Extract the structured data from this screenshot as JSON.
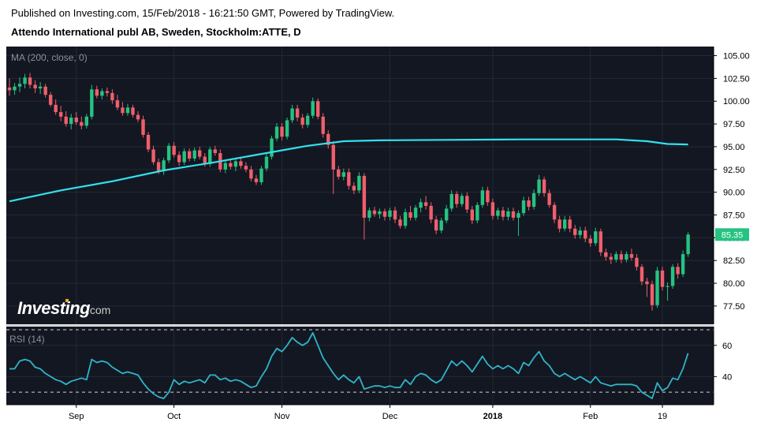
{
  "header": {
    "published": "Published on Investing.com, 15/Feb/2018 - 16:21:50 GMT, Powered by TradingView.",
    "title": "Attendo International publ AB, Sweden, Stockholm:ATTE, D"
  },
  "colors": {
    "background": "#131722",
    "up": "#26c281",
    "down": "#ef5f6b",
    "ma": "#33e0ee",
    "rsi": "#30b4c8",
    "grid": "#242833",
    "axis_text": "#000000",
    "last_price_bg": "#26c281"
  },
  "chart_data": [
    {
      "type": "candlestick",
      "title": "MA (200, close, 0)",
      "watermark": {
        "text": "Investing",
        "suffix": ".com"
      },
      "y_ticks": [
        77.5,
        80,
        82.5,
        85,
        87.5,
        90,
        92.5,
        95,
        97.5,
        100,
        102.5,
        105
      ],
      "y_tick_labels": [
        "77.50",
        "80.00",
        "82.50",
        "85.00",
        "87.50",
        "90.00",
        "92.50",
        "95.00",
        "97.50",
        "100.00",
        "102.50",
        "105.00"
      ],
      "ylim": [
        75.5,
        106
      ],
      "last_price": 85.35,
      "last_price_label": "85.35",
      "candles": [
        [
          101.5,
          102.5,
          100.6,
          101.2
        ],
        [
          101.2,
          102.0,
          100.7,
          101.6
        ],
        [
          101.6,
          102.6,
          101.0,
          101.9
        ],
        [
          101.9,
          103.0,
          101.4,
          102.6
        ],
        [
          102.6,
          103.1,
          101.4,
          101.8
        ],
        [
          101.8,
          102.3,
          100.9,
          101.4
        ],
        [
          101.4,
          102.1,
          100.8,
          101.6
        ],
        [
          101.6,
          101.9,
          100.4,
          100.7
        ],
        [
          100.7,
          101.0,
          99.4,
          99.6
        ],
        [
          99.6,
          100.2,
          98.5,
          98.8
        ],
        [
          98.8,
          99.5,
          97.8,
          98.3
        ],
        [
          98.3,
          98.9,
          97.2,
          97.5
        ],
        [
          97.5,
          98.6,
          96.9,
          98.2
        ],
        [
          98.2,
          98.8,
          97.4,
          97.7
        ],
        [
          97.7,
          98.3,
          96.9,
          97.3
        ],
        [
          97.3,
          98.6,
          97.0,
          98.3
        ],
        [
          98.3,
          101.8,
          98.0,
          101.3
        ],
        [
          101.3,
          101.7,
          100.3,
          100.6
        ],
        [
          100.6,
          101.4,
          100.2,
          101.1
        ],
        [
          101.1,
          101.5,
          100.5,
          100.9
        ],
        [
          100.9,
          101.3,
          99.7,
          100.1
        ],
        [
          100.1,
          100.7,
          99.0,
          99.3
        ],
        [
          99.3,
          99.9,
          98.4,
          98.7
        ],
        [
          98.7,
          99.7,
          98.4,
          99.3
        ],
        [
          99.3,
          99.6,
          98.2,
          98.5
        ],
        [
          98.5,
          98.9,
          97.7,
          98.0
        ],
        [
          98.0,
          98.4,
          96.0,
          96.3
        ],
        [
          96.3,
          96.6,
          94.4,
          94.7
        ],
        [
          94.7,
          95.1,
          93.0,
          93.3
        ],
        [
          93.3,
          93.7,
          92.0,
          92.3
        ],
        [
          92.3,
          93.8,
          91.9,
          93.5
        ],
        [
          93.5,
          95.4,
          93.2,
          95.1
        ],
        [
          95.1,
          95.5,
          93.8,
          94.1
        ],
        [
          94.1,
          94.5,
          92.9,
          93.3
        ],
        [
          93.3,
          94.8,
          93.0,
          94.5
        ],
        [
          94.5,
          94.8,
          93.4,
          93.7
        ],
        [
          93.7,
          94.9,
          93.4,
          94.6
        ],
        [
          94.6,
          95.0,
          93.6,
          93.9
        ],
        [
          93.9,
          94.3,
          92.8,
          93.1
        ],
        [
          93.1,
          95.0,
          92.8,
          94.7
        ],
        [
          94.7,
          95.1,
          94.0,
          94.3
        ],
        [
          94.3,
          94.7,
          92.2,
          92.5
        ],
        [
          92.5,
          93.5,
          92.1,
          93.2
        ],
        [
          93.2,
          93.6,
          92.5,
          92.8
        ],
        [
          92.8,
          93.7,
          92.3,
          93.4
        ],
        [
          93.4,
          93.8,
          92.6,
          92.9
        ],
        [
          92.9,
          93.3,
          92.2,
          92.5
        ],
        [
          92.5,
          92.9,
          91.2,
          91.5
        ],
        [
          91.5,
          91.9,
          90.8,
          91.1
        ],
        [
          91.1,
          92.9,
          90.8,
          92.6
        ],
        [
          92.6,
          94.2,
          92.3,
          93.9
        ],
        [
          93.9,
          96.2,
          93.6,
          95.9
        ],
        [
          95.9,
          97.6,
          95.6,
          97.2
        ],
        [
          97.2,
          97.6,
          95.7,
          96.1
        ],
        [
          96.1,
          98.2,
          95.8,
          97.9
        ],
        [
          97.9,
          99.6,
          97.6,
          99.2
        ],
        [
          99.2,
          99.6,
          97.8,
          98.2
        ],
        [
          98.2,
          98.6,
          97.0,
          97.4
        ],
        [
          97.4,
          98.7,
          97.1,
          98.4
        ],
        [
          98.4,
          100.4,
          98.1,
          100.0
        ],
        [
          100.0,
          100.3,
          98.0,
          98.3
        ],
        [
          98.3,
          98.7,
          96.0,
          96.4
        ],
        [
          96.4,
          96.8,
          94.8,
          95.2
        ],
        [
          95.2,
          95.6,
          89.8,
          92.5
        ],
        [
          92.5,
          92.9,
          91.4,
          91.7
        ],
        [
          91.7,
          92.6,
          91.3,
          92.2
        ],
        [
          92.2,
          92.6,
          90.3,
          90.7
        ],
        [
          90.7,
          91.1,
          89.8,
          90.2
        ],
        [
          90.2,
          92.2,
          89.9,
          91.8
        ],
        [
          91.8,
          92.1,
          84.8,
          87.2
        ],
        [
          87.2,
          88.3,
          86.8,
          88.0
        ],
        [
          88.0,
          88.4,
          87.3,
          87.6
        ],
        [
          87.6,
          88.2,
          87.1,
          87.9
        ],
        [
          87.9,
          88.2,
          86.9,
          87.3
        ],
        [
          87.3,
          88.3,
          86.9,
          88.0
        ],
        [
          88.0,
          88.4,
          86.6,
          87.0
        ],
        [
          87.0,
          87.4,
          86.0,
          86.3
        ],
        [
          86.3,
          88.2,
          86.0,
          87.8
        ],
        [
          87.8,
          88.5,
          86.9,
          87.2
        ],
        [
          87.2,
          88.6,
          86.9,
          88.3
        ],
        [
          88.3,
          89.3,
          87.8,
          88.9
        ],
        [
          88.9,
          89.6,
          88.1,
          88.5
        ],
        [
          88.5,
          88.9,
          86.6,
          87.0
        ],
        [
          87.0,
          87.4,
          85.4,
          85.8
        ],
        [
          85.8,
          87.2,
          85.5,
          86.9
        ],
        [
          86.9,
          88.6,
          86.6,
          88.2
        ],
        [
          88.2,
          90.2,
          87.9,
          89.8
        ],
        [
          89.8,
          90.1,
          88.3,
          88.7
        ],
        [
          88.7,
          89.9,
          88.4,
          89.6
        ],
        [
          89.6,
          90.0,
          87.7,
          88.1
        ],
        [
          88.1,
          88.5,
          86.5,
          86.9
        ],
        [
          86.9,
          88.9,
          86.6,
          88.6
        ],
        [
          88.6,
          90.6,
          88.3,
          90.2
        ],
        [
          90.2,
          90.6,
          88.5,
          88.9
        ],
        [
          88.9,
          89.3,
          87.0,
          87.4
        ],
        [
          87.4,
          88.3,
          87.0,
          88.0
        ],
        [
          88.0,
          88.4,
          86.9,
          87.3
        ],
        [
          87.3,
          88.3,
          86.9,
          87.9
        ],
        [
          87.9,
          88.3,
          86.9,
          87.2
        ],
        [
          87.2,
          88.0,
          85.2,
          87.7
        ],
        [
          87.7,
          89.5,
          87.4,
          89.1
        ],
        [
          89.1,
          89.5,
          88.0,
          88.4
        ],
        [
          88.4,
          90.3,
          88.1,
          89.9
        ],
        [
          89.9,
          91.9,
          89.6,
          91.4
        ],
        [
          91.4,
          91.7,
          89.5,
          89.9
        ],
        [
          89.9,
          90.3,
          88.3,
          88.6
        ],
        [
          88.6,
          88.9,
          86.6,
          87.0
        ],
        [
          87.0,
          87.4,
          85.6,
          86.0
        ],
        [
          86.0,
          87.4,
          85.7,
          87.0
        ],
        [
          87.0,
          87.4,
          85.6,
          86.0
        ],
        [
          86.0,
          86.4,
          84.9,
          85.3
        ],
        [
          85.3,
          86.2,
          84.9,
          85.8
        ],
        [
          85.8,
          86.2,
          84.5,
          84.9
        ],
        [
          84.9,
          85.3,
          84.0,
          84.4
        ],
        [
          84.4,
          86.1,
          84.1,
          85.7
        ],
        [
          85.7,
          86.0,
          83.0,
          83.4
        ],
        [
          83.4,
          83.8,
          82.5,
          82.9
        ],
        [
          82.9,
          83.3,
          82.1,
          82.6
        ],
        [
          82.6,
          83.5,
          82.3,
          83.2
        ],
        [
          83.2,
          83.6,
          82.2,
          82.6
        ],
        [
          82.6,
          83.5,
          82.3,
          83.2
        ],
        [
          83.2,
          83.8,
          82.5,
          82.8
        ],
        [
          82.8,
          83.2,
          81.4,
          81.8
        ],
        [
          81.8,
          82.1,
          79.8,
          80.2
        ],
        [
          80.2,
          80.6,
          78.5,
          79.9
        ],
        [
          79.9,
          80.3,
          77.0,
          77.6
        ],
        [
          77.6,
          81.8,
          77.3,
          81.4
        ],
        [
          81.4,
          81.8,
          79.2,
          79.6
        ],
        [
          79.6,
          80.1,
          78.1,
          79.7
        ],
        [
          79.7,
          82.1,
          79.4,
          81.8
        ],
        [
          81.8,
          82.2,
          80.5,
          81.0
        ],
        [
          81.0,
          83.6,
          80.7,
          83.2
        ],
        [
          83.2,
          85.6,
          82.9,
          85.35
        ]
      ],
      "candle_x_indices": [
        0,
        1,
        2,
        3,
        4,
        5,
        6,
        7,
        8,
        9,
        10,
        11,
        12,
        13,
        14,
        15,
        16,
        17,
        18,
        19,
        20,
        21,
        22,
        23,
        24,
        25,
        26,
        27,
        28,
        29,
        30,
        31,
        32,
        33,
        34,
        35,
        36,
        37,
        38,
        39,
        40,
        41,
        42,
        43,
        44,
        45,
        46,
        47,
        48,
        49,
        50,
        51,
        52,
        53,
        54,
        55,
        56,
        57,
        58,
        59,
        60,
        61,
        62,
        63,
        64,
        65,
        66,
        67,
        68,
        69,
        70,
        71,
        72,
        73,
        74,
        75,
        76,
        77,
        78,
        79,
        80,
        81,
        82,
        83,
        84,
        85,
        86,
        87,
        88,
        89,
        90,
        91,
        92,
        93,
        94,
        95,
        96,
        97,
        98,
        99,
        100,
        101,
        102,
        103,
        104,
        105,
        106,
        107,
        108,
        109,
        110,
        111,
        112,
        113,
        114,
        115,
        116,
        117,
        118,
        119,
        120,
        121,
        122,
        123,
        124,
        125,
        126,
        127,
        128,
        129,
        130,
        131,
        132
      ],
      "ma200": {
        "name": "MA (200, close, 0)",
        "points": [
          [
            0,
            89.0
          ],
          [
            10,
            90.2
          ],
          [
            20,
            91.2
          ],
          [
            30,
            92.4
          ],
          [
            40,
            93.3
          ],
          [
            50,
            94.3
          ],
          [
            58,
            95.1
          ],
          [
            65,
            95.6
          ],
          [
            72,
            95.7
          ],
          [
            85,
            95.75
          ],
          [
            100,
            95.8
          ],
          [
            118,
            95.8
          ],
          [
            124,
            95.6
          ],
          [
            128,
            95.3
          ],
          [
            132,
            95.25
          ]
        ]
      }
    },
    {
      "type": "line",
      "title": "RSI (14)",
      "y_ticks": [
        40,
        60
      ],
      "y_tick_labels": [
        "40",
        "60"
      ],
      "ylim": [
        22,
        72
      ],
      "overbought": 70,
      "oversold": 30,
      "values": [
        45,
        45,
        50,
        51,
        50,
        46,
        45,
        42,
        40,
        38,
        37,
        35,
        37,
        38,
        39,
        38,
        51,
        49,
        50,
        49,
        46,
        44,
        42,
        43,
        42,
        41,
        36,
        32,
        29,
        27,
        26,
        30,
        38,
        35,
        37,
        36,
        37,
        38,
        36,
        41,
        41,
        38,
        39,
        37,
        38,
        37,
        35,
        33,
        34,
        40,
        45,
        53,
        58,
        56,
        60,
        65,
        62,
        60,
        62,
        68,
        60,
        52,
        47,
        42,
        38,
        41,
        38,
        36,
        40,
        32,
        33,
        34,
        34,
        33,
        34,
        33,
        33,
        38,
        35,
        40,
        42,
        41,
        38,
        36,
        38,
        44,
        50,
        47,
        50,
        47,
        43,
        48,
        53,
        48,
        45,
        47,
        45,
        47,
        45,
        42,
        49,
        47,
        52,
        56,
        50,
        47,
        42,
        40,
        42,
        40,
        38,
        40,
        38,
        36,
        40,
        36,
        35,
        34,
        35,
        35,
        35,
        35,
        34,
        30,
        28,
        26,
        36,
        31,
        33,
        39,
        38,
        45,
        55
      ]
    }
  ],
  "x_axis": {
    "tick_labels": [
      "Sep",
      "Oct",
      "Nov",
      "Dec",
      "2018",
      "Feb",
      "19"
    ],
    "tick_indices": [
      13,
      32,
      53,
      74,
      94,
      113,
      127
    ],
    "bold": [
      "2018"
    ]
  }
}
